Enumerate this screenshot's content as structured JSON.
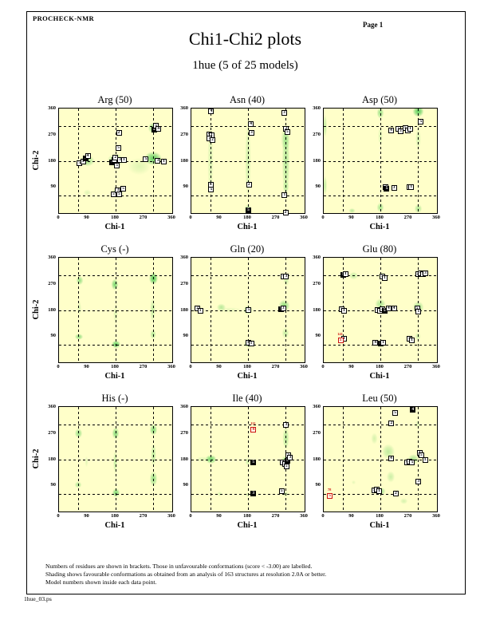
{
  "header": {
    "app_name": "PROCHECK-NMR",
    "page_label": "Page  1"
  },
  "title": "Chi1-Chi2 plots",
  "subtitle": "1hue (5 of 25 models)",
  "footer": {
    "lines": [
      "Numbers of residues are shown in brackets. Those in unfavourable conformations (score < -3.00) are labelled.",
      "Shading shows favourable conformations as obtained from an analysis of 163 structures at resolution 2.0A or better.",
      "Model numbers shown inside each data point."
    ]
  },
  "filename": "1hue_03.ps",
  "colors": {
    "plot_bg": "#FFFFC9",
    "density_green": "#2FBE3C",
    "outlier_red": "#CC1111",
    "axis_black": "#000000",
    "page_bg": "#FFFFFF"
  },
  "axes": {
    "xlabel": "Chi-1",
    "ylabel": "Chi-2",
    "x_range": [
      0,
      360
    ],
    "y_range": [
      0,
      360
    ],
    "x_tick_labels": [
      "0",
      "90",
      "180",
      "270",
      "360"
    ],
    "y_tick_labels": [
      "360",
      "270",
      "180",
      "90"
    ],
    "gridlines_deg": [
      60,
      180,
      300
    ]
  },
  "chart_data": [
    {
      "type": "scatter",
      "title": "Arg (50)",
      "residue": "Arg",
      "n_residues": 50,
      "points": [
        [
          64,
          172,
          "5"
        ],
        [
          75,
          180,
          "5"
        ],
        [
          84,
          190,
          "2",
          "k"
        ],
        [
          90,
          199,
          "4"
        ],
        [
          168,
          177,
          "4",
          "k"
        ],
        [
          176,
          184,
          "4"
        ],
        [
          183,
          165,
          "5"
        ],
        [
          193,
          183,
          "3"
        ],
        [
          205,
          184,
          "1"
        ],
        [
          178,
          192,
          "2"
        ],
        [
          188,
          226,
          "5"
        ],
        [
          189,
          278,
          "2"
        ],
        [
          275,
          186,
          "5"
        ],
        [
          313,
          182,
          "3"
        ],
        [
          332,
          180,
          "1"
        ],
        [
          301,
          288,
          "5",
          "k"
        ],
        [
          307,
          303,
          "5"
        ],
        [
          315,
          292,
          "4"
        ],
        [
          172,
          65,
          "5"
        ],
        [
          186,
          80,
          "3"
        ],
        [
          203,
          86,
          "5"
        ],
        [
          190,
          66,
          "5"
        ]
      ],
      "outliers": [],
      "density": [
        [
          90,
          180,
          32,
          26,
          0.45
        ],
        [
          180,
          182,
          36,
          30,
          0.5
        ],
        [
          300,
          188,
          38,
          32,
          0.75
        ],
        [
          302,
          292,
          26,
          26,
          0.6
        ],
        [
          185,
          70,
          26,
          22,
          0.45
        ],
        [
          255,
          160,
          50,
          40,
          0.15
        ],
        [
          90,
          70,
          16,
          14,
          0.15
        ]
      ]
    },
    {
      "type": "scatter",
      "title": "Asn (40)",
      "residue": "Asn",
      "n_residues": 40,
      "points": [
        [
          62,
          352,
          "4"
        ],
        [
          294,
          346,
          "3"
        ],
        [
          188,
          308,
          "4"
        ],
        [
          190,
          278,
          "3"
        ],
        [
          300,
          292,
          "2"
        ],
        [
          304,
          281,
          "5"
        ],
        [
          55,
          272,
          "4"
        ],
        [
          63,
          268,
          "1"
        ],
        [
          57,
          258,
          "5"
        ],
        [
          66,
          254,
          "2"
        ],
        [
          60,
          100,
          "4"
        ],
        [
          62,
          82,
          "5"
        ],
        [
          182,
          100,
          "2"
        ],
        [
          295,
          62,
          "1"
        ],
        [
          180,
          10,
          "5",
          "k"
        ],
        [
          298,
          2,
          "2"
        ]
      ],
      "outliers": [],
      "density": [
        [
          60,
          180,
          13,
          185,
          0.2
        ],
        [
          180,
          180,
          13,
          185,
          0.25
        ],
        [
          300,
          180,
          17,
          185,
          0.38
        ],
        [
          300,
          255,
          20,
          55,
          0.3
        ],
        [
          180,
          15,
          16,
          22,
          0.4
        ],
        [
          65,
          352,
          13,
          16,
          0.3
        ],
        [
          300,
          90,
          14,
          28,
          0.22
        ]
      ]
    },
    {
      "type": "scatter",
      "title": "Asp (50)",
      "residue": "Asp",
      "n_residues": 50,
      "points": [
        [
          308,
          315,
          "5"
        ],
        [
          258,
          293,
          "5"
        ],
        [
          266,
          286,
          "4"
        ],
        [
          274,
          291,
          "1"
        ],
        [
          213,
          287,
          "4"
        ],
        [
          237,
          290,
          "5"
        ],
        [
          243,
          283,
          "3"
        ],
        [
          196,
          92,
          "3"
        ],
        [
          199,
          84,
          "5",
          "k"
        ],
        [
          222,
          88,
          "3"
        ],
        [
          270,
          92,
          "2"
        ],
        [
          277,
          92,
          "1"
        ]
      ],
      "outliers": [],
      "density": [
        [
          300,
          350,
          24,
          26,
          0.8
        ],
        [
          180,
          345,
          15,
          26,
          0.5
        ],
        [
          4,
          300,
          9,
          55,
          0.3
        ],
        [
          4,
          95,
          9,
          45,
          0.3
        ],
        [
          180,
          20,
          15,
          22,
          0.45
        ],
        [
          300,
          15,
          17,
          20,
          0.4
        ],
        [
          90,
          8,
          13,
          12,
          0.35
        ],
        [
          300,
          255,
          12,
          50,
          0.22
        ],
        [
          180,
          265,
          10,
          45,
          0.18
        ]
      ]
    },
    {
      "type": "scatter",
      "title": "Cys (-)",
      "residue": "Cys",
      "n_residues": null,
      "points": [],
      "outliers": [],
      "density": [
        [
          65,
          282,
          15,
          20,
          0.5
        ],
        [
          63,
          88,
          17,
          15,
          0.55
        ],
        [
          178,
          268,
          15,
          26,
          0.65
        ],
        [
          182,
          62,
          19,
          18,
          0.8
        ],
        [
          300,
          288,
          19,
          28,
          0.85
        ],
        [
          298,
          180,
          11,
          55,
          0.3
        ],
        [
          300,
          95,
          13,
          22,
          0.4
        ],
        [
          65,
          185,
          9,
          35,
          0.18
        ],
        [
          180,
          165,
          9,
          45,
          0.18
        ]
      ]
    },
    {
      "type": "scatter",
      "title": "Gln (20)",
      "residue": "Gln",
      "n_residues": 20,
      "points": [
        [
          292,
          296,
          "4"
        ],
        [
          300,
          296,
          "3"
        ],
        [
          18,
          186,
          "2"
        ],
        [
          27,
          180,
          "1"
        ],
        [
          181,
          181,
          "5"
        ],
        [
          283,
          183,
          "5",
          "k"
        ],
        [
          291,
          187,
          "3"
        ],
        [
          180,
          70,
          "4"
        ],
        [
          189,
          65,
          "1"
        ]
      ],
      "outliers": [],
      "density": [
        [
          95,
          190,
          20,
          16,
          0.35
        ],
        [
          180,
          180,
          20,
          20,
          0.5
        ],
        [
          295,
          195,
          24,
          28,
          0.55
        ],
        [
          180,
          62,
          18,
          16,
          0.4
        ],
        [
          300,
          100,
          15,
          26,
          0.3
        ],
        [
          302,
          282,
          13,
          26,
          0.25
        ],
        [
          25,
          182,
          13,
          12,
          0.25
        ],
        [
          120,
          180,
          60,
          12,
          0.12
        ]
      ]
    },
    {
      "type": "scatter",
      "title": "Glu (80)",
      "residue": "Glu",
      "n_residues": 80,
      "points": [
        [
          60,
          302,
          "5",
          "k"
        ],
        [
          68,
          306,
          "1"
        ],
        [
          185,
          297,
          "5"
        ],
        [
          192,
          291,
          "1"
        ],
        [
          298,
          304,
          "2"
        ],
        [
          306,
          307,
          "4"
        ],
        [
          314,
          304,
          "5"
        ],
        [
          322,
          307,
          "3"
        ],
        [
          55,
          185,
          "5"
        ],
        [
          63,
          180,
          "1"
        ],
        [
          170,
          182,
          "5"
        ],
        [
          177,
          178,
          "3"
        ],
        [
          185,
          184,
          "2"
        ],
        [
          192,
          180,
          "5",
          "k"
        ],
        [
          205,
          186,
          "4"
        ],
        [
          222,
          187,
          "4"
        ],
        [
          296,
          188,
          "5"
        ],
        [
          300,
          176,
          "1"
        ],
        [
          63,
          82,
          "1"
        ],
        [
          163,
          70,
          "4"
        ],
        [
          180,
          66,
          "5",
          "k"
        ],
        [
          188,
          68,
          "1"
        ],
        [
          272,
          82,
          "4"
        ],
        [
          279,
          76,
          "1"
        ]
      ],
      "outliers": [
        [
          52,
          78,
          "5",
          "141"
        ]
      ],
      "density": [
        [
          180,
          200,
          24,
          24,
          0.4
        ],
        [
          300,
          190,
          24,
          28,
          0.45
        ],
        [
          95,
          298,
          18,
          18,
          0.3
        ],
        [
          185,
          298,
          16,
          16,
          0.3
        ],
        [
          310,
          306,
          20,
          16,
          0.35
        ],
        [
          60,
          185,
          14,
          14,
          0.3
        ],
        [
          180,
          62,
          18,
          14,
          0.35
        ],
        [
          300,
          90,
          13,
          18,
          0.25
        ],
        [
          60,
          302,
          11,
          11,
          0.3
        ]
      ]
    },
    {
      "type": "scatter",
      "title": "His (-)",
      "residue": "His",
      "n_residues": null,
      "points": [],
      "outliers": [],
      "density": [
        [
          62,
          270,
          17,
          22,
          0.5
        ],
        [
          60,
          92,
          15,
          16,
          0.4
        ],
        [
          180,
          270,
          15,
          28,
          0.6
        ],
        [
          182,
          65,
          17,
          20,
          0.65
        ],
        [
          178,
          170,
          9,
          55,
          0.3
        ],
        [
          300,
          282,
          17,
          26,
          0.6
        ],
        [
          300,
          112,
          17,
          36,
          0.5
        ],
        [
          300,
          195,
          11,
          55,
          0.35
        ],
        [
          88,
          172,
          7,
          26,
          0.15
        ]
      ]
    },
    {
      "type": "scatter",
      "title": "Ile (40)",
      "residue": "Ile",
      "n_residues": 40,
      "points": [
        [
          300,
          300,
          "3"
        ],
        [
          196,
          170,
          "5",
          "k"
        ],
        [
          290,
          170,
          "4"
        ],
        [
          296,
          166,
          "1"
        ],
        [
          301,
          157,
          "5"
        ],
        [
          304,
          176,
          "5",
          "k"
        ],
        [
          308,
          196,
          "5"
        ],
        [
          313,
          188,
          "3"
        ],
        [
          196,
          62,
          "3",
          "k"
        ],
        [
          286,
          72,
          "5"
        ]
      ],
      "outliers": [
        [
          196,
          282,
          "4",
          "111"
        ]
      ],
      "density": [
        [
          62,
          180,
          24,
          20,
          0.7
        ],
        [
          300,
          252,
          14,
          55,
          0.38
        ],
        [
          300,
          175,
          18,
          22,
          0.5
        ],
        [
          180,
          172,
          13,
          18,
          0.25
        ],
        [
          90,
          60,
          11,
          11,
          0.2
        ],
        [
          180,
          58,
          11,
          12,
          0.2
        ],
        [
          300,
          60,
          13,
          14,
          0.25
        ],
        [
          35,
          180,
          30,
          12,
          0.15
        ]
      ]
    },
    {
      "type": "scatter",
      "title": "Leu (50)",
      "residue": "Leu",
      "n_residues": 50,
      "points": [
        [
          282,
          352,
          "4",
          "k"
        ],
        [
          226,
          340,
          "5"
        ],
        [
          214,
          306,
          "2"
        ],
        [
          303,
          203,
          "3"
        ],
        [
          309,
          196,
          "5"
        ],
        [
          213,
          185,
          "4"
        ],
        [
          264,
          170,
          "4"
        ],
        [
          272,
          174,
          "3"
        ],
        [
          280,
          170,
          "5"
        ],
        [
          321,
          178,
          "1"
        ],
        [
          300,
          105,
          "3"
        ],
        [
          160,
          74,
          "5"
        ],
        [
          168,
          76,
          "4"
        ],
        [
          175,
          71,
          "1"
        ],
        [
          228,
          63,
          "2"
        ]
      ],
      "outliers": [
        [
          18,
          55,
          "5",
          "78"
        ]
      ],
      "density": [
        [
          205,
          205,
          28,
          36,
          0.3
        ],
        [
          285,
          180,
          24,
          24,
          0.4
        ],
        [
          182,
          70,
          22,
          18,
          0.45
        ],
        [
          212,
          120,
          18,
          26,
          0.25
        ],
        [
          162,
          252,
          14,
          26,
          0.2
        ],
        [
          300,
          300,
          13,
          18,
          0.18
        ],
        [
          255,
          35,
          16,
          14,
          0.2
        ],
        [
          95,
          100,
          9,
          9,
          0.12
        ]
      ]
    }
  ]
}
